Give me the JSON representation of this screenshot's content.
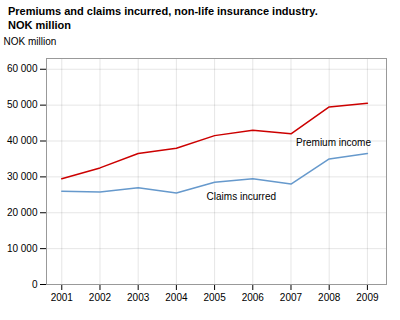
{
  "chart_data": {
    "type": "line",
    "title": "Premiums and claims incurred, non-life insurance industry.",
    "subtitle": "NOK million",
    "ylabel": "NOK million",
    "x": [
      2001,
      2002,
      2003,
      2004,
      2005,
      2006,
      2007,
      2008,
      2009
    ],
    "series": [
      {
        "name": "Premium income",
        "color": "#cc0000",
        "values": [
          29500,
          32500,
          36500,
          38000,
          41500,
          43000,
          42000,
          49500,
          50500
        ]
      },
      {
        "name": "Claims incurred",
        "color": "#6699cc",
        "values": [
          26000,
          25800,
          27000,
          25500,
          28500,
          29500,
          28000,
          35000,
          36500
        ]
      }
    ],
    "xlim": [
      2000.6,
      2009.5
    ],
    "xticks": [
      2001,
      2002,
      2003,
      2004,
      2005,
      2006,
      2007,
      2008,
      2009
    ],
    "ylim": [
      0,
      63000
    ],
    "yticks": [
      0,
      {
        "value": 10000,
        "label": "10 000"
      },
      {
        "value": 20000,
        "label": "20 000"
      },
      {
        "value": 30000,
        "label": "30 000"
      },
      {
        "value": 40000,
        "label": "40 000"
      },
      {
        "value": 50000,
        "label": "50 000"
      },
      {
        "value": 60000,
        "label": "60 000"
      }
    ],
    "grid": true
  }
}
